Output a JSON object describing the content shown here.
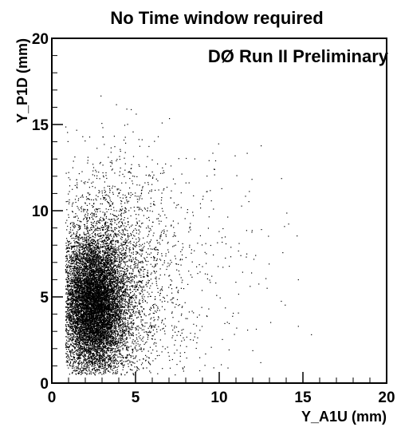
{
  "chart_data": {
    "type": "scatter",
    "title": "No Time window required",
    "annotation": "DØ Run II Preliminary",
    "xlabel": "Y_A1U (mm)",
    "ylabel": "Y_P1D (mm)",
    "xlim": [
      0,
      20
    ],
    "ylim": [
      0,
      20
    ],
    "x_ticks": [
      "0",
      "5",
      "10",
      "15",
      "20"
    ],
    "y_ticks": [
      "0",
      "5",
      "10",
      "15",
      "20"
    ],
    "grid": false,
    "legend": "none",
    "point_color": "#000000",
    "clusters": [
      {
        "center_x": 2.5,
        "center_y": 4.5,
        "spread_x": 0.9,
        "spread_y": 1.9,
        "count": 9000
      },
      {
        "center_x": 3.2,
        "center_y": 5.5,
        "spread_x": 1.8,
        "spread_y": 3.2,
        "count": 3500
      },
      {
        "center_x": 5.0,
        "center_y": 6.0,
        "spread_x": 4.0,
        "spread_y": 4.5,
        "count": 900
      }
    ],
    "x_range_points": [
      0.8,
      17.5
    ],
    "y_range_points": [
      0.5,
      17.0
    ]
  }
}
